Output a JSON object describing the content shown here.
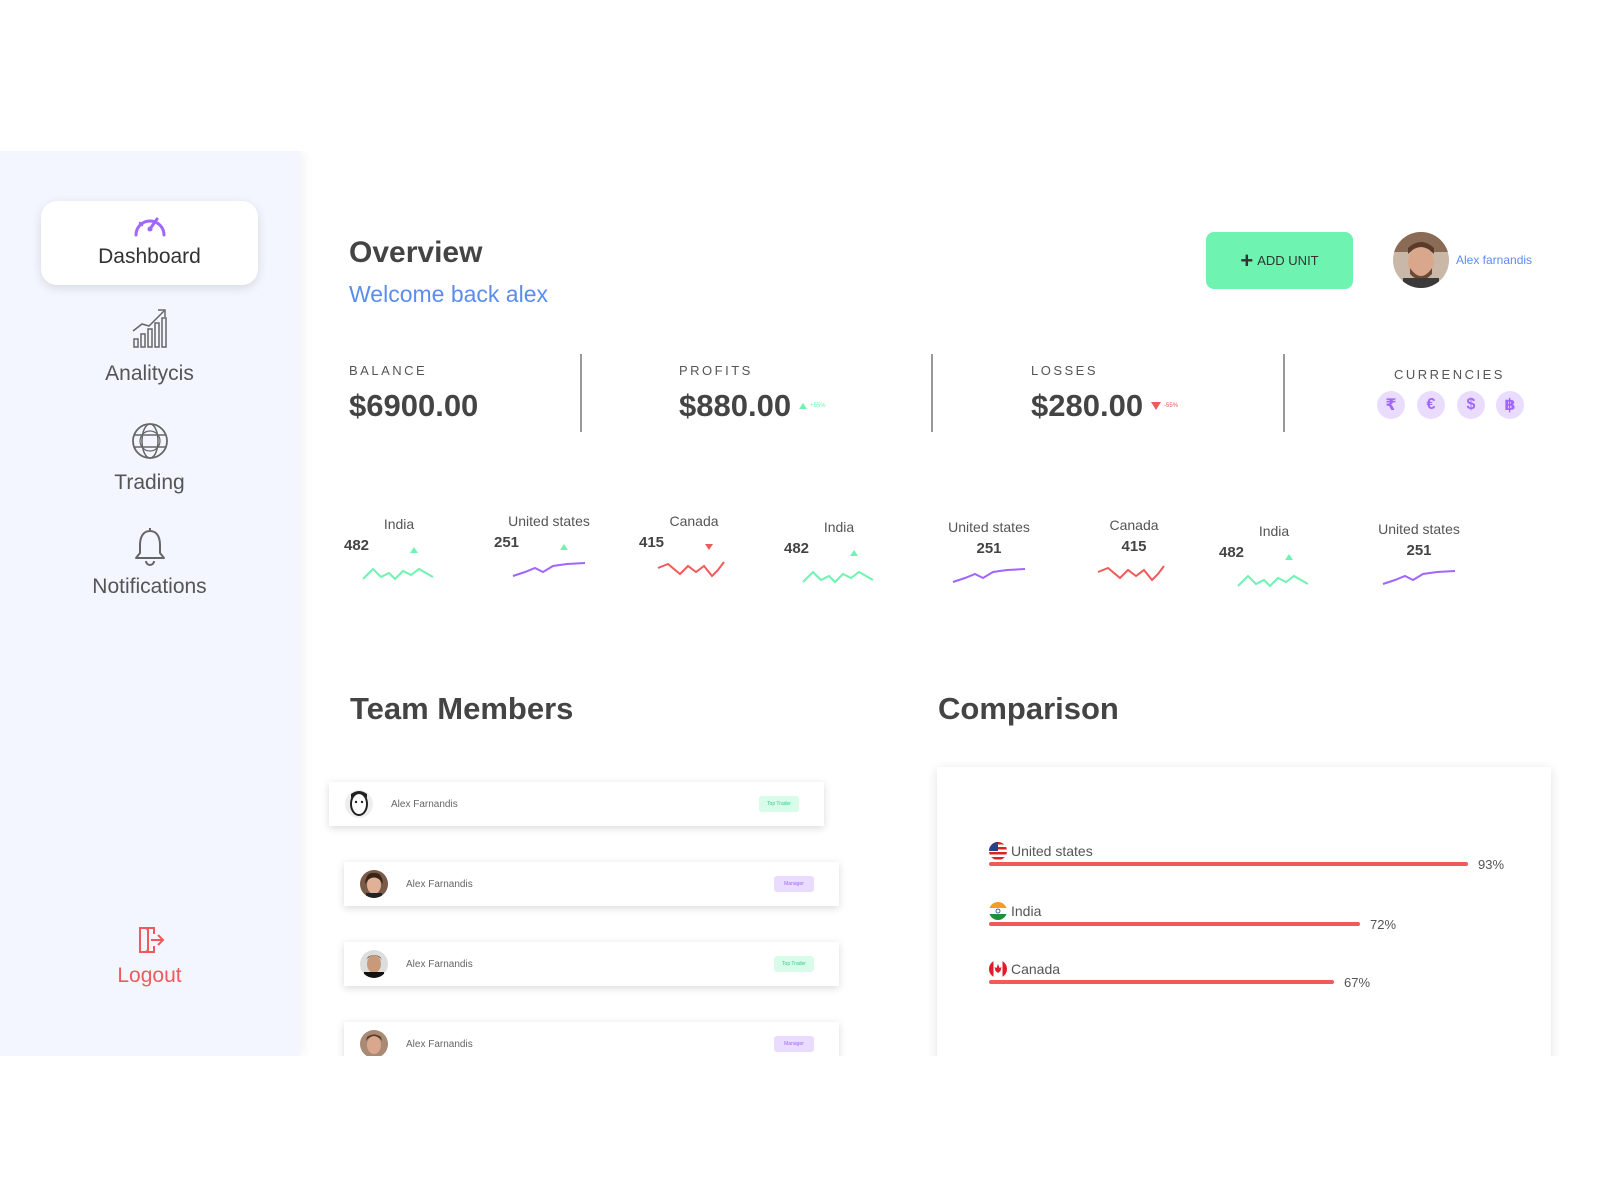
{
  "sidebar": {
    "items": [
      {
        "label": "Dashboard",
        "icon": "speedometer-icon",
        "active": true
      },
      {
        "label": "Analitycis",
        "icon": "growth-chart-icon"
      },
      {
        "label": "Trading",
        "icon": "globe-icon"
      },
      {
        "label": "Notifications",
        "icon": "bell-icon"
      }
    ],
    "logout": {
      "label": "Logout",
      "icon": "logout-icon"
    }
  },
  "header": {
    "title": "Overview",
    "welcome": "Welcome back alex",
    "add_unit_label": "ADD UNIT",
    "user_name": "Alex farnandis"
  },
  "stats": {
    "balance": {
      "caption": "BALANCE",
      "value": "$6900.00"
    },
    "profits": {
      "caption": "PROFITS",
      "value": "$880.00",
      "change": "+55%",
      "trend": "up"
    },
    "losses": {
      "caption": "LOSSES",
      "value": "$280.00",
      "change": "-55%",
      "trend": "down"
    },
    "currencies": {
      "caption": "CURRENCIES",
      "symbols": [
        "₹",
        "€",
        "$",
        "฿"
      ]
    }
  },
  "sparklines": [
    {
      "country": "India",
      "value": "482",
      "trend": "up",
      "color": "#6ff3b0"
    },
    {
      "country": "United states",
      "value": "251",
      "trend": "up",
      "color": "#a066ff"
    },
    {
      "country": "Canada",
      "value": "415",
      "trend": "down",
      "color": "#f05a5a"
    },
    {
      "country": "India",
      "value": "482",
      "trend": "up",
      "color": "#6ff3b0"
    },
    {
      "country": "United states",
      "value": "251",
      "trend": "none",
      "color": "#a066ff"
    },
    {
      "country": "Canada",
      "value": "415",
      "trend": "none",
      "color": "#f05a5a"
    },
    {
      "country": "India",
      "value": "482",
      "trend": "up",
      "color": "#6ff3b0"
    },
    {
      "country": "United states",
      "value": "251",
      "trend": "none",
      "color": "#a066ff"
    }
  ],
  "team": {
    "title": "Team Members",
    "members": [
      {
        "name": "Alex Farnandis",
        "role": "Top Trader"
      },
      {
        "name": "Alex Farnandis",
        "role": "Manager"
      },
      {
        "name": "Alex Farnandis",
        "role": "Top Trader"
      },
      {
        "name": "Alex Farnandis",
        "role": "Manager"
      }
    ]
  },
  "comparison": {
    "title": "Comparison",
    "rows": [
      {
        "country": "United states",
        "percent": 93,
        "label": "93%",
        "flag": "us-flag-icon"
      },
      {
        "country": "India",
        "percent": 72,
        "label": "72%",
        "flag": "india-flag-icon"
      },
      {
        "country": "Canada",
        "percent": 67,
        "label": "67%",
        "flag": "canada-flag-icon"
      }
    ]
  },
  "colors": {
    "accent_green": "#6ff3b0",
    "accent_purple": "#a066ff",
    "accent_red": "#f05a5a",
    "accent_blue": "#5b8def",
    "sidebar_bg": "#f3f6fe"
  }
}
